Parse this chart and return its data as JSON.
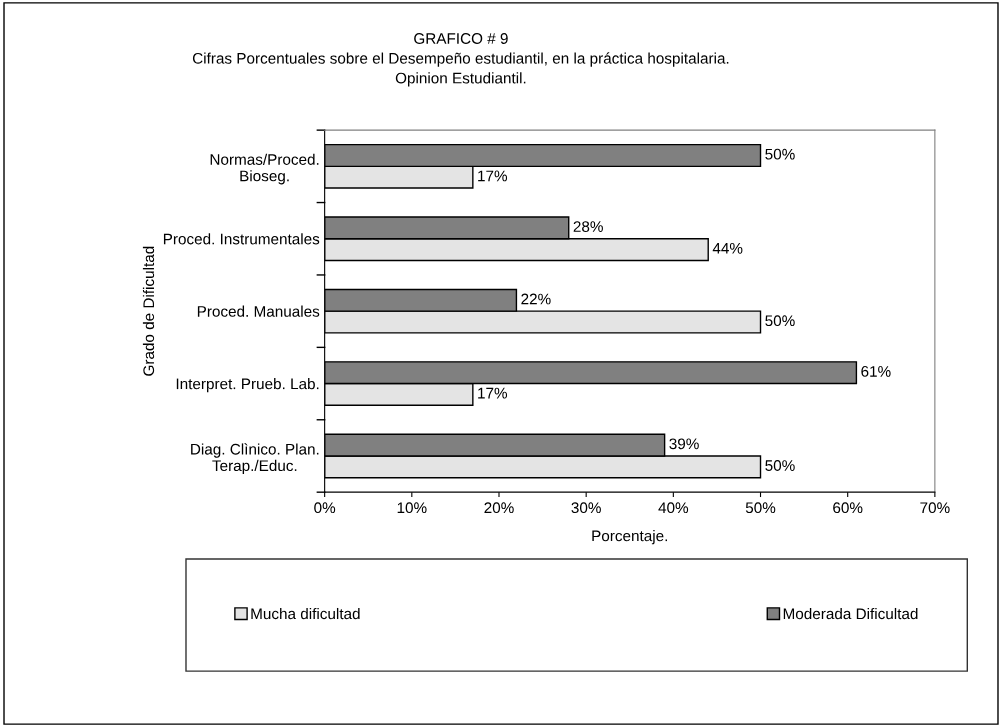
{
  "chart_data": {
    "type": "bar",
    "orientation": "horizontal",
    "title": "GRAFICO # 9",
    "subtitle": "Cifras Porcentuales sobre el Desempeño estudiantil, en la práctica hospitalaria.\nOpinion Estudiantil.",
    "xlabel": "Porcentaje.",
    "ylabel": "Grado de Dificultad",
    "categories": [
      "Normas/Proced.\nBioseg.",
      "Proced. Instrumentales",
      "Proced. Manuales",
      "Interpret. Prueb. Lab.",
      "Diag. Clìnico. Plan.\nTerap./Educ."
    ],
    "series": [
      {
        "name": "Mucha dificultad",
        "color": "#e4e4e4",
        "values": [
          17,
          44,
          50,
          17,
          50
        ],
        "value_labels": [
          "17%",
          "44%",
          "50%",
          "17%",
          "50%"
        ]
      },
      {
        "name": "Moderada Dificultad",
        "color": "#808080",
        "values": [
          50,
          28,
          22,
          61,
          39
        ],
        "value_labels": [
          "50%",
          "28%",
          "22%",
          "61%",
          "39%"
        ]
      }
    ],
    "xlim": [
      0,
      70
    ],
    "xticks": [
      {
        "value": 0,
        "label": "0%"
      },
      {
        "value": 10,
        "label": "10%"
      },
      {
        "value": 20,
        "label": "20%"
      },
      {
        "value": 30,
        "label": "30%"
      },
      {
        "value": 40,
        "label": "40%"
      },
      {
        "value": 50,
        "label": "50%"
      },
      {
        "value": 60,
        "label": "60%"
      },
      {
        "value": 70,
        "label": "70%"
      }
    ],
    "grid": false,
    "legend": "bottom"
  }
}
